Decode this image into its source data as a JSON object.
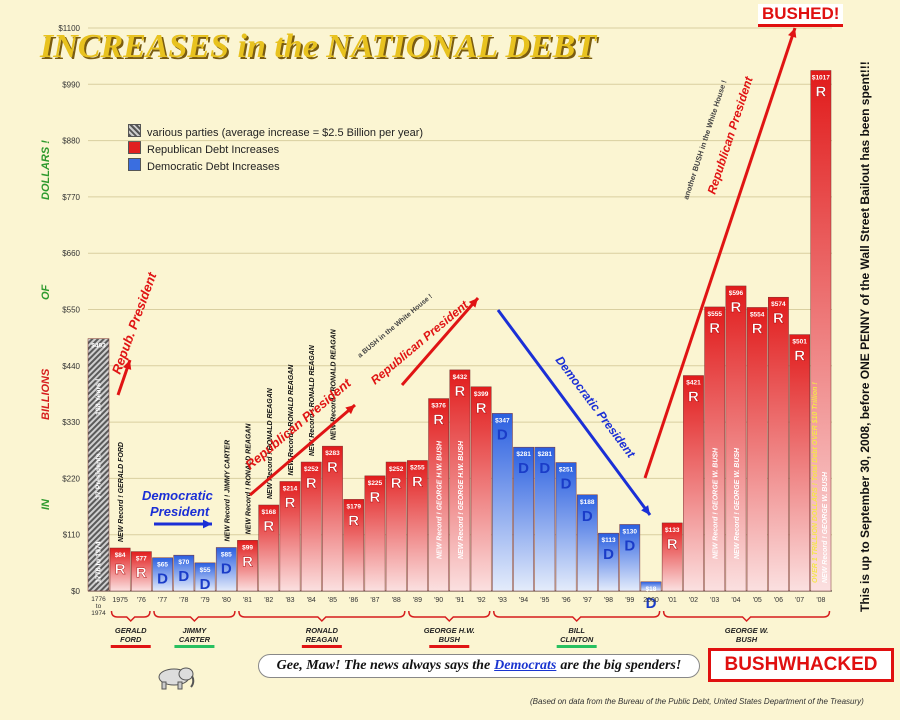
{
  "title": "INCREASES in the NATIONAL DEBT",
  "y_axis_words": [
    "DOLLARS !",
    "OF",
    "BILLIONS",
    "IN"
  ],
  "legend": [
    {
      "label": "various parties (average increase = $2.5 Billion per year)",
      "color": "#8c8c8c"
    },
    {
      "label": "Republican Debt Increases",
      "color": "#e02020"
    },
    {
      "label": "Democratic Debt Increases",
      "color": "#3a6ee0"
    }
  ],
  "side_note": "This is up to September 30, 2008, before ONE PENNY of the Wall Street Bailout has been spent!!!",
  "bushed_label": "BUSHED!",
  "bushwhacked_label": "BUSHWHACKED",
  "speech": {
    "before": "Gee, Maw! The news always says the",
    "highlight": "Democrats",
    "after": "are the big spenders!"
  },
  "source": "(Based on data from the Bureau of the Public Debt, United States Department of the Treasury)",
  "arrow_texts": {
    "repub_1": "Repub. President",
    "dem_1": "Democratic President",
    "repub_2": "Republican President",
    "bush_wh_1": "a BUSH in the White House !",
    "repub_3": "Republican President",
    "dem_2": "Democratic President",
    "bush_wh_2": "another BUSH in the White House !",
    "repub_4": "Republican President"
  },
  "presidents": [
    {
      "label": "GERALD FORD",
      "party": "R"
    },
    {
      "label": "JIMMY CARTER",
      "party": "D"
    },
    {
      "label": "RONALD REAGAN",
      "party": "R"
    },
    {
      "label": "GEORGE H.W. BUSH",
      "party": "R"
    },
    {
      "label": "BILL CLINTON",
      "party": "D"
    },
    {
      "label": "GEORGE W. BUSH",
      "party": "R"
    }
  ],
  "chart_data": {
    "type": "bar",
    "ylim": [
      0,
      1100
    ],
    "yticks": [
      "$0",
      "$110",
      "$220",
      "$330",
      "$440",
      "$550",
      "$660",
      "$770",
      "$880",
      "$990",
      "$1100"
    ],
    "ytick_values": [
      0,
      110,
      220,
      330,
      440,
      550,
      660,
      770,
      880,
      990,
      1100
    ],
    "categories": [
      "1776 to 1974",
      "'75",
      "'76",
      "'77",
      "'78",
      "'79",
      "'80",
      "'81",
      "'82",
      "'83",
      "'84",
      "'85",
      "'86",
      "'87",
      "'88",
      "'89",
      "'90",
      "'91",
      "'92",
      "'93",
      "'94",
      "'95",
      "'96",
      "'97",
      "'98",
      "'99",
      "2000",
      "'01",
      "'02",
      "'03",
      "'04",
      "'05",
      "'06",
      "'07",
      "'08"
    ],
    "x_first_label_lines": [
      "1776",
      "to",
      "1974"
    ],
    "x_labels": [
      "1975",
      "'76",
      "'77",
      "'78",
      "'79",
      "'80",
      "'81",
      "'82",
      "'83",
      "'84",
      "'85",
      "'86",
      "'87",
      "'88",
      "'89",
      "'90",
      "'91",
      "'92",
      "'93",
      "'94",
      "'95",
      "'96",
      "'97",
      "'98",
      "'99",
      "2000",
      "'01",
      "'02",
      "'03",
      "'04",
      "'05",
      "'06",
      "'07",
      "'08"
    ],
    "values": [
      493,
      84,
      77,
      65,
      70,
      55,
      85,
      99,
      168,
      214,
      252,
      283,
      179,
      225,
      252,
      255,
      376,
      432,
      399,
      347,
      281,
      281,
      251,
      188,
      113,
      130,
      18,
      133,
      421,
      555,
      596,
      554,
      574,
      501,
      1017
    ],
    "value_labels": [
      "$493",
      "$84",
      "$77",
      "$65",
      "$70",
      "$55",
      "$85",
      "$99",
      "$168",
      "$214",
      "$252",
      "$283",
      "$179",
      "$225",
      "$252",
      "$255",
      "$376",
      "$432",
      "$399",
      "$347",
      "$281",
      "$281",
      "$251",
      "$188",
      "$113",
      "$130",
      "$18",
      "$133",
      "$421",
      "$555",
      "$596",
      "$554",
      "$574",
      "$501",
      "$1017"
    ],
    "parties": [
      "X",
      "R",
      "R",
      "D",
      "D",
      "D",
      "D",
      "R",
      "R",
      "R",
      "R",
      "R",
      "R",
      "R",
      "R",
      "R",
      "R",
      "R",
      "R",
      "D",
      "D",
      "D",
      "D",
      "D",
      "D",
      "D",
      "D",
      "R",
      "R",
      "R",
      "R",
      "R",
      "R",
      "R",
      "R"
    ],
    "bar_notes": {
      "0": [
        "1776 to 1974",
        "37 Presidents +",
        "198 Years !"
      ],
      "1": [
        "NEW Record ! GERALD FORD"
      ],
      "6": [
        "NEW Record ! JIMMY CARTER"
      ],
      "7": [
        "NEW Record ! RONALD REAGAN"
      ],
      "8": [
        "NEW Record ! RONALD REAGAN"
      ],
      "9": [
        "NEW Record ! RONALD REAGAN"
      ],
      "10": [
        "NEW Record ! RONALD REAGAN"
      ],
      "11": [
        "NEW Record ! RONALD REAGAN"
      ],
      "16": [
        "NEW Record ! GEORGE H.W. BUSH"
      ],
      "17": [
        "NEW Record ! GEORGE H.W. BUSH"
      ],
      "29": [
        "NEW Record ! GEORGE W. BUSH"
      ],
      "30": [
        "NEW Record ! GEORGE W. BUSH"
      ],
      "34": [
        "NEW Record ! GEORGE W. BUSH",
        "OVER 1 TRILLION DOLLARS ! Total Debt OVER $10 Trillion !"
      ]
    }
  }
}
